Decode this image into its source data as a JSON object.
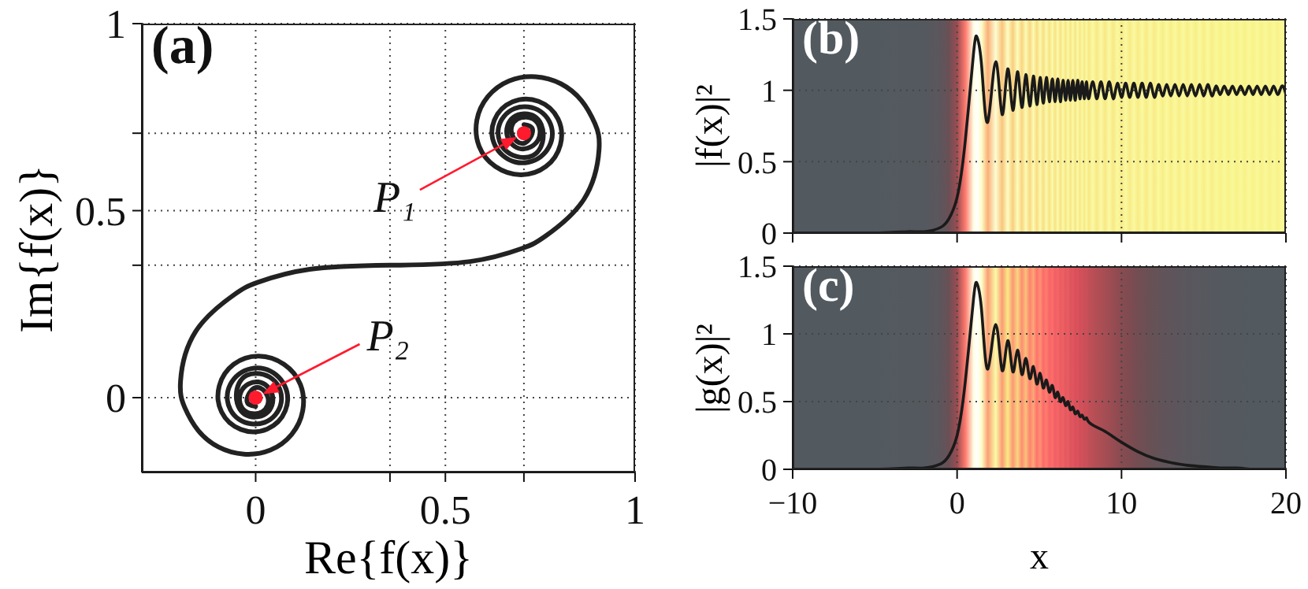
{
  "chart_data": [
    {
      "type": "line",
      "title": "(a)",
      "xlabel": "Re{f(x)}",
      "ylabel": "Im{f(x)}",
      "xlim": [
        -0.3,
        1
      ],
      "ylim": [
        -0.2,
        1
      ],
      "xticks": [
        0,
        {
          "value": 0.354,
          "label": null
        },
        0.5,
        {
          "value": 0.707,
          "label": null
        },
        1
      ],
      "yticks": [
        0,
        {
          "value": 0.354,
          "label": null
        },
        0.5,
        {
          "value": 0.707,
          "label": null
        },
        1
      ],
      "grid": true,
      "series": [
        {
          "type": "line",
          "color": "#222222",
          "x": [
            0,
            -0.023,
            0,
            0.032,
            0.017,
            -0.031,
            -0.038,
            0.007,
            0.044,
            0.027,
            -0.028,
            -0.051,
            -0.023,
            0.044,
            0.067,
            0.024,
            -0.044,
            -0.075,
            -0.044,
            0.023,
            0.076,
            0.078,
            0.03,
            -0.039,
            -0.09,
            -0.096,
            -0.058,
            0.008,
            0.075,
            0.118,
            0.124,
            0.095,
            0.039,
            -0.031,
            -0.098,
            -0.152,
            -0.187,
            -0.198,
            -0.158,
            -0.057,
            0.005,
            0.142,
            0.354,
            0.565,
            0.702,
            0.764,
            0.865,
            0.905,
            0.894,
            0.859,
            0.805,
            0.738,
            0.668,
            0.612,
            0.583,
            0.589,
            0.632,
            0.699,
            0.765,
            0.803,
            0.797,
            0.746,
            0.677,
            0.629,
            0.631,
            0.684,
            0.751,
            0.782,
            0.751,
            0.683,
            0.64,
            0.663,
            0.73,
            0.758,
            0.735,
            0.68,
            0.663,
            0.7,
            0.745,
            0.738,
            0.69,
            0.675,
            0.707,
            0.73,
            0.707
          ],
          "values": [
            -0.023,
            -0.008,
            0.027,
            0.002,
            -0.038,
            -0.033,
            0.017,
            0.042,
            0.007,
            -0.043,
            -0.045,
            0.007,
            0.06,
            0.05,
            -0.014,
            -0.066,
            -0.058,
            0.002,
            0.063,
            0.077,
            0.033,
            -0.035,
            -0.084,
            -0.085,
            -0.038,
            0.031,
            0.089,
            0.111,
            0.089,
            0.035,
            -0.035,
            -0.098,
            -0.14,
            -0.151,
            -0.132,
            -0.087,
            -0.026,
            0.044,
            0.177,
            0.275,
            0.308,
            0.343,
            0.354,
            0.364,
            0.399,
            0.432,
            0.53,
            0.663,
            0.733,
            0.794,
            0.839,
            0.858,
            0.847,
            0.805,
            0.742,
            0.672,
            0.618,
            0.596,
            0.618,
            0.676,
            0.745,
            0.792,
            0.791,
            0.742,
            0.674,
            0.63,
            0.644,
            0.705,
            0.765,
            0.773,
            0.721,
            0.657,
            0.647,
            0.7,
            0.752,
            0.75,
            0.7,
            0.665,
            0.69,
            0.74,
            0.745,
            0.705,
            0.68,
            0.715,
            0.73
          ]
        },
        {
          "type": "scatter",
          "color": "#ff1a2e",
          "marker": "circle",
          "x": [
            0.707,
            0
          ],
          "values": [
            0.707,
            0
          ]
        }
      ],
      "annotations": [
        {
          "text": "P₁",
          "x": 0.707,
          "y": 0.707
        },
        {
          "text": "P₂",
          "x": 0,
          "y": 0
        }
      ]
    },
    {
      "type": "line",
      "title": "(b)",
      "ylabel": "|f(x)|²",
      "color": "#1a1a1a",
      "xlim": [
        -10,
        20
      ],
      "ylim": [
        0,
        1.5
      ],
      "xticks": [
        -10,
        0,
        10,
        20
      ],
      "yticks": [
        0,
        0.5,
        1,
        1.5
      ],
      "grid": true,
      "tick_labels": "y",
      "x": [
        -10,
        -5,
        -3,
        -2,
        -1,
        -0.5,
        0,
        0.5,
        1,
        1.22,
        1.5,
        1.87,
        2.35,
        2.74,
        3.08,
        3.39,
        3.67,
        3.94,
        4.18,
        4.42,
        4.64,
        4.85,
        5.05,
        5.24,
        5.43,
        5.61,
        5.79,
        5.96,
        6.12,
        6.28,
        6.44,
        6.6,
        6.75,
        6.89,
        7.04,
        7.18,
        7.33,
        7.47,
        7.6,
        7.74,
        7.87,
        8,
        8.25,
        8.5,
        8.75,
        9,
        9.25,
        9.5,
        9.75,
        10,
        10.25,
        10.5,
        10.75,
        11,
        11.25,
        11.5,
        11.75,
        12,
        12.25,
        12.5,
        12.75,
        13,
        13.25,
        13.5,
        13.75,
        14,
        14.25,
        14.5,
        14.75,
        15,
        15.25,
        15.5,
        15.75,
        16,
        16.25,
        16.5,
        16.75,
        17,
        17.25,
        17.5,
        17.75,
        18,
        18.25,
        18.5,
        18.75,
        19,
        19.25,
        19.5,
        19.75,
        20
      ],
      "values": [
        0,
        0,
        0.01,
        0.01,
        0.04,
        0.1,
        0.25,
        0.65,
        1.26,
        1.37,
        1.16,
        0.78,
        1.2,
        0.83,
        1.15,
        0.86,
        1.13,
        0.88,
        1.11,
        0.89,
        1.1,
        0.9,
        1.09,
        0.91,
        1.09,
        0.92,
        1.08,
        0.92,
        1.08,
        0.92,
        1.07,
        0.93,
        1.07,
        0.93,
        1.07,
        0.93,
        1.07,
        0.94,
        1.06,
        0.94,
        1.06,
        0.94,
        1.06,
        0.94,
        1.06,
        0.94,
        1.06,
        0.94,
        1.05,
        0.95,
        1.05,
        0.95,
        1.05,
        0.95,
        1.05,
        0.95,
        1.05,
        0.95,
        1.04,
        0.96,
        1.04,
        0.96,
        1.04,
        0.96,
        1.04,
        0.96,
        1.04,
        0.96,
        1.04,
        0.96,
        1.04,
        0.96,
        1.03,
        0.97,
        1.03,
        0.97,
        1.03,
        0.97,
        1.03,
        0.97,
        1.03,
        0.97,
        1.03,
        0.97,
        1.03,
        0.97,
        1.03,
        0.97,
        1.03,
        0.97
      ]
    },
    {
      "type": "line",
      "title": "(c)",
      "xlabel": "x",
      "ylabel": "|g(x)|²",
      "color": "#1a1a1a",
      "xlim": [
        -10,
        20
      ],
      "ylim": [
        0,
        1.5
      ],
      "xticks": [
        {
          "value": -10,
          "label": "−10"
        },
        0,
        10,
        20
      ],
      "yticks": [
        0,
        0.5,
        1,
        1.5
      ],
      "grid": true,
      "x": [
        -10,
        -5,
        -3,
        -2,
        -1,
        -0.5,
        0,
        0.5,
        1,
        1.22,
        1.5,
        1.87,
        2.35,
        2.74,
        3.08,
        3.39,
        3.67,
        3.94,
        4.18,
        4.42,
        4.64,
        4.85,
        5.05,
        5.24,
        5.43,
        5.61,
        5.79,
        5.96,
        6.12,
        6.28,
        6.44,
        6.6,
        6.75,
        6.89,
        7.04,
        7.18,
        7.33,
        7.47,
        7.6,
        7.74,
        7.87,
        8,
        8.5,
        9,
        9.5,
        10,
        11,
        12,
        13,
        14,
        15,
        16,
        17,
        18,
        19,
        20
      ],
      "values": [
        0,
        0,
        0.01,
        0.01,
        0.04,
        0.1,
        0.25,
        0.65,
        1.26,
        1.37,
        1.16,
        0.74,
        1.07,
        0.73,
        0.95,
        0.72,
        0.88,
        0.7,
        0.82,
        0.67,
        0.76,
        0.63,
        0.71,
        0.6,
        0.66,
        0.57,
        0.62,
        0.53,
        0.57,
        0.5,
        0.53,
        0.47,
        0.5,
        0.44,
        0.46,
        0.41,
        0.43,
        0.39,
        0.4,
        0.37,
        0.38,
        0.35,
        0.31,
        0.28,
        0.24,
        0.2,
        0.13,
        0.08,
        0.05,
        0.03,
        0.02,
        0.01,
        0.01,
        0,
        0,
        0
      ]
    }
  ]
}
